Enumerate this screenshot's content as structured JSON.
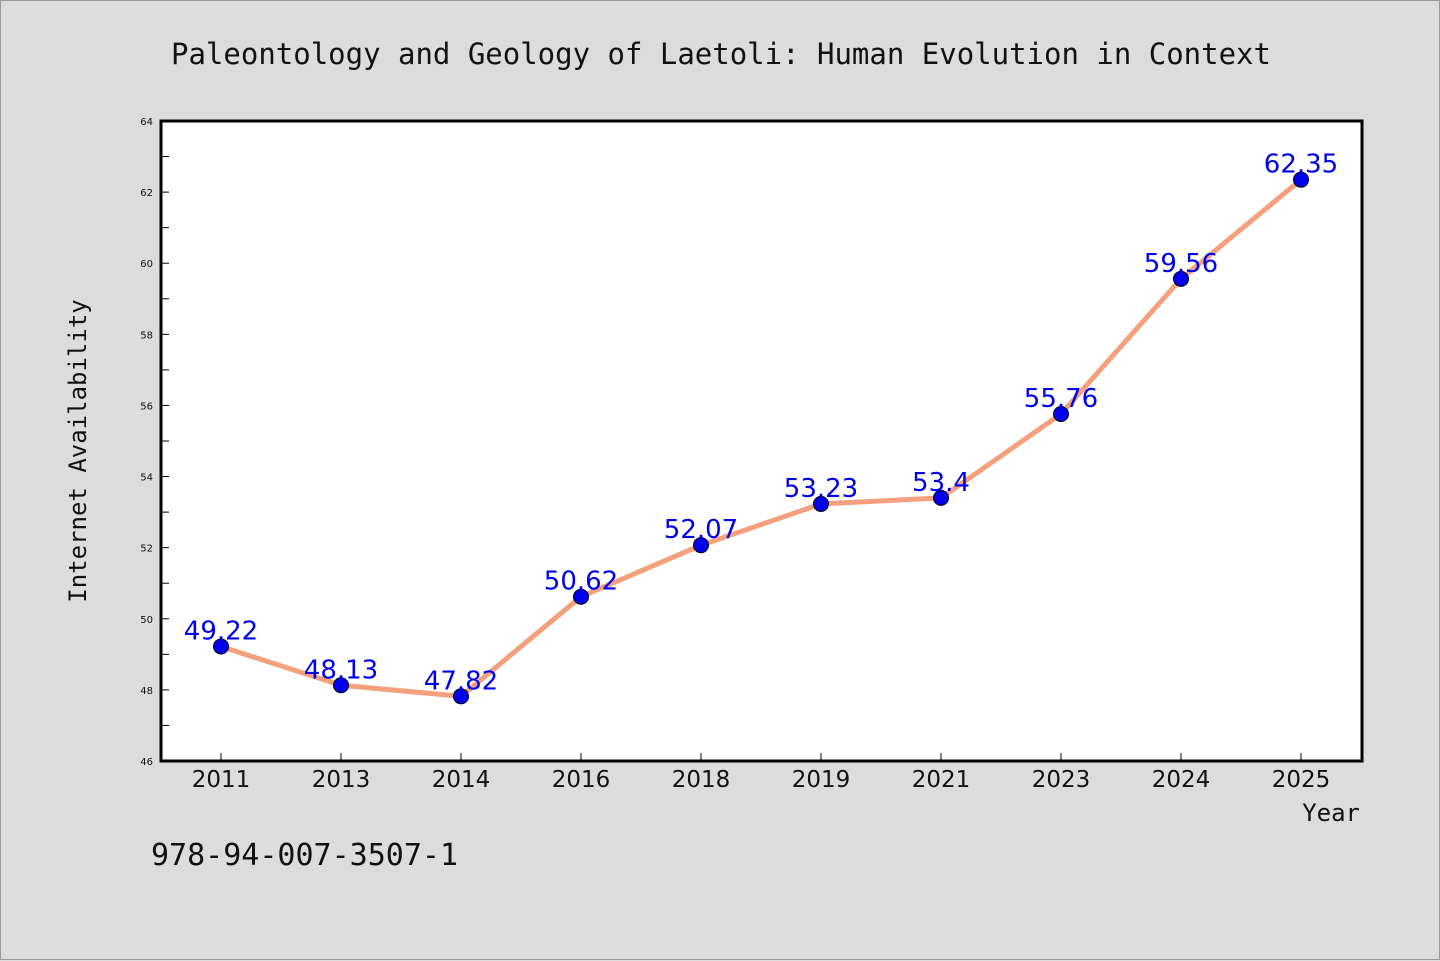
{
  "chart_data": {
    "type": "line",
    "title": "Paleontology and Geology of Laetoli: Human Evolution in Context",
    "xlabel": "Year",
    "ylabel": "Internet Availability",
    "categories": [
      "2011",
      "2013",
      "2014",
      "2016",
      "2018",
      "2019",
      "2021",
      "2023",
      "2024",
      "2025"
    ],
    "series": [
      {
        "values": [
          49.22,
          48.13,
          47.82,
          50.62,
          52.07,
          53.23,
          53.4,
          55.76,
          59.56,
          62.35
        ],
        "labels": [
          "49.22",
          "48.13",
          "47.82",
          "50.62",
          "52.07",
          "53.23",
          "53.4",
          "55.76",
          "59.56",
          "62.35"
        ]
      }
    ],
    "ylim": [
      46,
      64
    ],
    "yticks": [
      "46",
      "48",
      "50",
      "52",
      "54",
      "56",
      "58",
      "60",
      "62",
      "64"
    ],
    "grid": false,
    "legend": "none",
    "colors": {
      "line": "#f4a07c",
      "marker": "#0000ee",
      "data_label": "#0000ee",
      "background": "#dcdcdc",
      "plot_background": "#ffffff"
    }
  },
  "footer": {
    "isbn": "978-94-007-3507-1"
  }
}
